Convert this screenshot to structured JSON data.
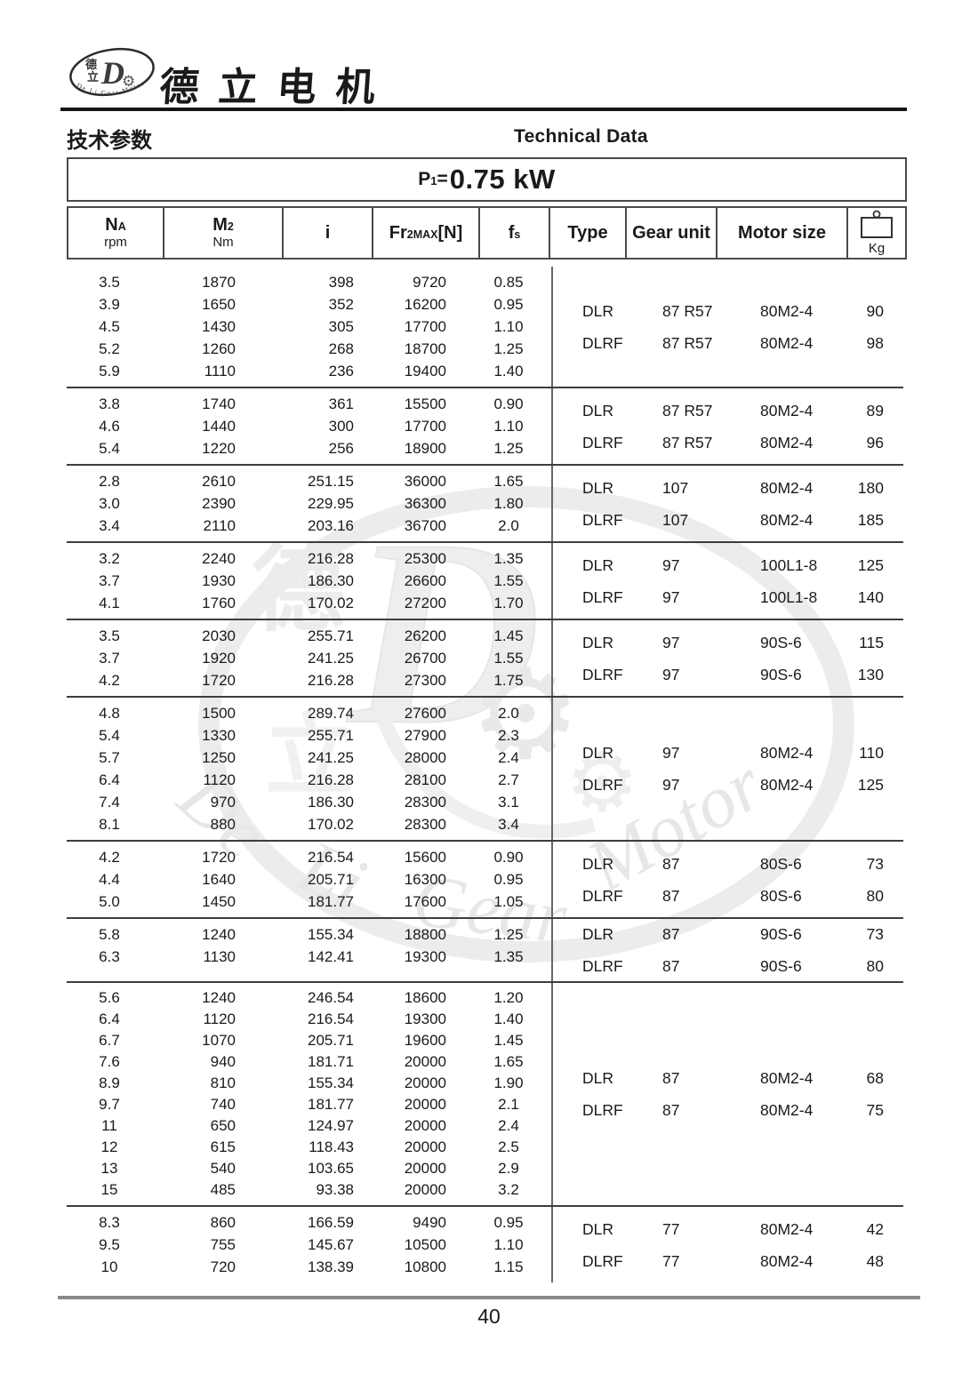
{
  "brand": {
    "name_cn": "德立电机",
    "logo_cn_top": "德",
    "logo_cn_bottom": "立",
    "logo_letter": "D",
    "logo_en": "De Li Gear Motor"
  },
  "section": {
    "title_cn": "技术参数",
    "title_en": "Technical Data"
  },
  "power_title": {
    "prefix": "P",
    "sub": "1",
    "equals": "=",
    "value": "0.75 kW"
  },
  "watermark": {
    "char_top": "德",
    "char_bottom": "立",
    "letter": "D",
    "word1": "De",
    "word2": "Li",
    "word3": "Gear",
    "word4": "Motor",
    "gear_glyph": "⚙"
  },
  "table": {
    "columns": [
      {
        "main": "N",
        "sub": "A",
        "suffix": "",
        "unit": "rpm"
      },
      {
        "main": "M",
        "sub": "2",
        "suffix": "",
        "unit": "Nm"
      },
      {
        "main": "i",
        "sub": "",
        "suffix": "",
        "unit": ""
      },
      {
        "main": "Fr",
        "sub": "2MAX",
        "suffix": "[N]",
        "unit": ""
      },
      {
        "main": "f",
        "sub": "s",
        "suffix": "",
        "unit": ""
      },
      {
        "main": "Type",
        "sub": "",
        "suffix": "",
        "unit": ""
      },
      {
        "main": "Gear unit",
        "sub": "",
        "suffix": "",
        "unit": ""
      },
      {
        "main": "Motor size",
        "sub": "",
        "suffix": "",
        "unit": ""
      },
      {
        "main": "",
        "sub": "",
        "suffix": "",
        "unit": "Kg",
        "icon": "weight-icon"
      }
    ],
    "groups": [
      {
        "rows": [
          [
            "3.5",
            "1870",
            "398",
            "9720",
            "0.85"
          ],
          [
            "3.9",
            "1650",
            "352",
            "16200",
            "0.95"
          ],
          [
            "4.5",
            "1430",
            "305",
            "17700",
            "1.10"
          ],
          [
            "5.2",
            "1260",
            "268",
            "18700",
            "1.25"
          ],
          [
            "5.9",
            "1110",
            "236",
            "19400",
            "1.40"
          ]
        ],
        "entries": [
          {
            "type": "DLR",
            "gear": "87 R57",
            "motor": "80M2-4",
            "kg": "90"
          },
          {
            "type": "DLRF",
            "gear": "87 R57",
            "motor": "80M2-4",
            "kg": "98"
          }
        ]
      },
      {
        "rows": [
          [
            "3.8",
            "1740",
            "361",
            "15500",
            "0.90"
          ],
          [
            "4.6",
            "1440",
            "300",
            "17700",
            "1.10"
          ],
          [
            "5.4",
            "1220",
            "256",
            "18900",
            "1.25"
          ]
        ],
        "entries": [
          {
            "type": "DLR",
            "gear": "87 R57",
            "motor": "80M2-4",
            "kg": "89"
          },
          {
            "type": "DLRF",
            "gear": "87 R57",
            "motor": "80M2-4",
            "kg": "96"
          }
        ]
      },
      {
        "rows": [
          [
            "2.8",
            "2610",
            "251.15",
            "36000",
            "1.65"
          ],
          [
            "3.0",
            "2390",
            "229.95",
            "36300",
            "1.80"
          ],
          [
            "3.4",
            "2110",
            "203.16",
            "36700",
            "2.0"
          ]
        ],
        "entries": [
          {
            "type": "DLR",
            "gear": "107",
            "motor": "80M2-4",
            "kg": "180"
          },
          {
            "type": "DLRF",
            "gear": "107",
            "motor": "80M2-4",
            "kg": "185"
          }
        ]
      },
      {
        "rows": [
          [
            "3.2",
            "2240",
            "216.28",
            "25300",
            "1.35"
          ],
          [
            "3.7",
            "1930",
            "186.30",
            "26600",
            "1.55"
          ],
          [
            "4.1",
            "1760",
            "170.02",
            "27200",
            "1.70"
          ]
        ],
        "entries": [
          {
            "type": "DLR",
            "gear": "97",
            "motor": "100L1-8",
            "kg": "125"
          },
          {
            "type": "DLRF",
            "gear": "97",
            "motor": "100L1-8",
            "kg": "140"
          }
        ]
      },
      {
        "rows": [
          [
            "3.5",
            "2030",
            "255.71",
            "26200",
            "1.45"
          ],
          [
            "3.7",
            "1920",
            "241.25",
            "26700",
            "1.55"
          ],
          [
            "4.2",
            "1720",
            "216.28",
            "27300",
            "1.75"
          ]
        ],
        "entries": [
          {
            "type": "DLR",
            "gear": "97",
            "motor": "90S-6",
            "kg": "115"
          },
          {
            "type": "DLRF",
            "gear": "97",
            "motor": "90S-6",
            "kg": "130"
          }
        ]
      },
      {
        "rows": [
          [
            "4.8",
            "1500",
            "289.74",
            "27600",
            "2.0"
          ],
          [
            "5.4",
            "1330",
            "255.71",
            "27900",
            "2.3"
          ],
          [
            "5.7",
            "1250",
            "241.25",
            "28000",
            "2.4"
          ],
          [
            "6.4",
            "1120",
            "216.28",
            "28100",
            "2.7"
          ],
          [
            "7.4",
            "970",
            "186.30",
            "28300",
            "3.1"
          ],
          [
            "8.1",
            "880",
            "170.02",
            "28300",
            "3.4"
          ]
        ],
        "entries": [
          {
            "type": "DLR",
            "gear": "97",
            "motor": "80M2-4",
            "kg": "110"
          },
          {
            "type": "DLRF",
            "gear": "97",
            "motor": "80M2-4",
            "kg": "125"
          }
        ]
      },
      {
        "rows": [
          [
            "4.2",
            "1720",
            "216.54",
            "15600",
            "0.90"
          ],
          [
            "4.4",
            "1640",
            "205.71",
            "16300",
            "0.95"
          ],
          [
            "5.0",
            "1450",
            "181.77",
            "17600",
            "1.05"
          ]
        ],
        "entries": [
          {
            "type": "DLR",
            "gear": "87",
            "motor": "80S-6",
            "kg": "73"
          },
          {
            "type": "DLRF",
            "gear": "87",
            "motor": "80S-6",
            "kg": "80"
          }
        ]
      },
      {
        "rows": [
          [
            "5.8",
            "1240",
            "155.34",
            "18800",
            "1.25"
          ],
          [
            "6.3",
            "1130",
            "142.41",
            "19300",
            "1.35"
          ]
        ],
        "entries": [
          {
            "type": "DLR",
            "gear": "87",
            "motor": "90S-6",
            "kg": "73"
          },
          {
            "type": "DLRF",
            "gear": "87",
            "motor": "90S-6",
            "kg": "80"
          }
        ]
      },
      {
        "rows": [
          [
            "5.6",
            "1240",
            "246.54",
            "18600",
            "1.20"
          ],
          [
            "6.4",
            "1120",
            "216.54",
            "19300",
            "1.40"
          ],
          [
            "6.7",
            "1070",
            "205.71",
            "19600",
            "1.45"
          ],
          [
            "7.6",
            "940",
            "181.71",
            "20000",
            "1.65"
          ],
          [
            "8.9",
            "810",
            "155.34",
            "20000",
            "1.90"
          ],
          [
            "9.7",
            "740",
            "181.77",
            "20000",
            "2.1"
          ],
          [
            "11",
            "650",
            "124.97",
            "20000",
            "2.4"
          ],
          [
            "12",
            "615",
            "118.43",
            "20000",
            "2.5"
          ],
          [
            "13",
            "540",
            "103.65",
            "20000",
            "2.9"
          ],
          [
            "15",
            "485",
            "93.38",
            "20000",
            "3.2"
          ]
        ],
        "entries": [
          {
            "type": "DLR",
            "gear": "87",
            "motor": "80M2-4",
            "kg": "68"
          },
          {
            "type": "DLRF",
            "gear": "87",
            "motor": "80M2-4",
            "kg": "75"
          }
        ]
      },
      {
        "rows": [
          [
            "8.3",
            "860",
            "166.59",
            "9490",
            "0.95"
          ],
          [
            "9.5",
            "755",
            "145.67",
            "10500",
            "1.10"
          ],
          [
            "10",
            "720",
            "138.39",
            "10800",
            "1.15"
          ]
        ],
        "entries": [
          {
            "type": "DLR",
            "gear": "77",
            "motor": "80M2-4",
            "kg": "42"
          },
          {
            "type": "DLRF",
            "gear": "77",
            "motor": "80M2-4",
            "kg": "48"
          }
        ]
      }
    ]
  },
  "footer": {
    "page_number": "40"
  }
}
